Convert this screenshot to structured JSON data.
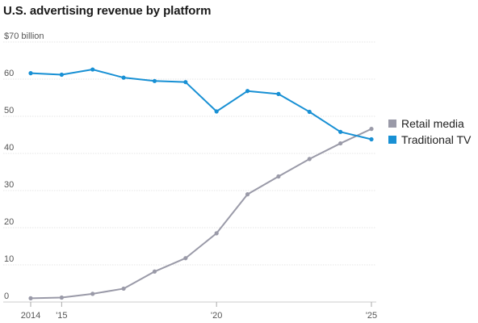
{
  "chart_data": {
    "type": "line",
    "title": "U.S. advertising revenue by platform",
    "x": [
      2014,
      2015,
      2016,
      2017,
      2018,
      2019,
      2020,
      2021,
      2022,
      2023,
      2024,
      2025
    ],
    "x_tick_values": [
      2014,
      2015,
      2020,
      2025
    ],
    "x_tick_labels": [
      "2014",
      "'15",
      "'20",
      "'25"
    ],
    "y_tick_values": [
      0,
      10,
      20,
      30,
      40,
      50,
      60,
      70
    ],
    "y_tick_labels": [
      "0",
      "10",
      "20",
      "30",
      "40",
      "50",
      "60",
      "$70 billion"
    ],
    "xlim": [
      2014,
      2025
    ],
    "ylim": [
      0,
      70
    ],
    "grid": true,
    "legend_position": "right",
    "series": [
      {
        "name": "Retail media",
        "color": "#9a9aa8",
        "values": [
          1.0,
          1.2,
          2.2,
          3.6,
          8.2,
          11.8,
          18.5,
          29.0,
          33.8,
          38.5,
          42.7,
          46.6
        ]
      },
      {
        "name": "Traditional TV",
        "color": "#1890d4",
        "values": [
          61.6,
          61.2,
          62.6,
          60.4,
          59.5,
          59.2,
          51.3,
          56.8,
          56.0,
          51.2,
          45.8,
          43.8
        ]
      }
    ]
  }
}
